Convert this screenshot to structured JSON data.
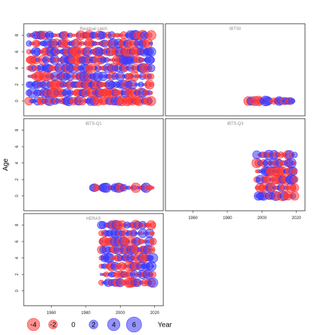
{
  "chart_data": {
    "type": "scatter",
    "xlabel": "Year",
    "ylabel": "Age",
    "colors": {
      "positive": "#3a3aff",
      "negative": "#ff3434"
    },
    "x_ticks": [
      1960,
      1980,
      2000,
      2020
    ],
    "y_ticks": [
      0,
      2,
      4,
      6,
      8
    ],
    "xlim": [
      1944,
      2025
    ],
    "ylim": [
      -1.8,
      9.4
    ],
    "legend": {
      "values": [
        -4,
        -2,
        0,
        2,
        4,
        6
      ],
      "labels": [
        "-4",
        "-2",
        "0",
        "2",
        "4",
        "6"
      ],
      "title": "Year",
      "placement": "bottom"
    },
    "panels": [
      {
        "title": "Residual catch",
        "years": [
          1947,
          2018
        ],
        "ages": [
          0,
          1,
          2,
          3,
          4,
          5,
          6,
          7,
          8
        ],
        "show_x_axis": false,
        "show_y_axis": true
      },
      {
        "title": "IBTS0",
        "years": [
          1992,
          2018
        ],
        "ages": [
          0
        ],
        "show_x_axis": false,
        "show_y_axis": false
      },
      {
        "title": "IBTS-Q1",
        "years": [
          1984,
          2019
        ],
        "ages": [
          1
        ],
        "show_x_axis": false,
        "show_y_axis": true
      },
      {
        "title": "IBTS-Q3",
        "years": [
          1997,
          2019
        ],
        "ages": [
          0,
          1,
          2,
          3,
          4,
          5
        ],
        "show_x_axis": true,
        "show_y_axis": false
      },
      {
        "title": "HERAS",
        "years": [
          1989,
          2019
        ],
        "ages": [
          1,
          2,
          3,
          4,
          5,
          6,
          7,
          8
        ],
        "show_x_axis": true,
        "show_y_axis": true
      }
    ]
  }
}
